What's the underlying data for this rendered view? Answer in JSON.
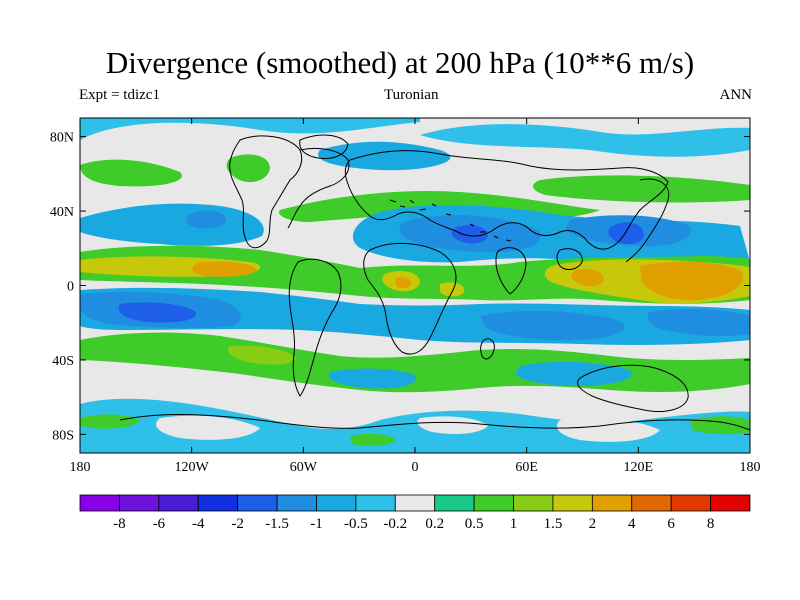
{
  "title": "Divergence (smoothed) at 200 hPa (10**6 m/s)",
  "subtitle_left": "Expt = tdizc1",
  "subtitle_center": "Turonian",
  "subtitle_right": "ANN",
  "chart_data": {
    "type": "filled-contour-map",
    "variable": "Divergence (smoothed)",
    "level": "200 hPa",
    "units": "10**6 m/s",
    "xlim": [
      -180,
      180
    ],
    "ylim": [
      -90,
      90
    ],
    "lon_ticks": [
      {
        "value": -180,
        "label": "180"
      },
      {
        "value": -120,
        "label": "120W"
      },
      {
        "value": -60,
        "label": "60W"
      },
      {
        "value": 0,
        "label": "0"
      },
      {
        "value": 60,
        "label": "60E"
      },
      {
        "value": 120,
        "label": "120E"
      },
      {
        "value": 180,
        "label": "180"
      }
    ],
    "lat_ticks": [
      {
        "value": 80,
        "label": "80N"
      },
      {
        "value": 40,
        "label": "40N"
      },
      {
        "value": 0,
        "label": "0"
      },
      {
        "value": -40,
        "label": "40S"
      },
      {
        "value": -80,
        "label": "80S"
      }
    ],
    "colorbar": {
      "labels": [
        "-8",
        "-6",
        "-4",
        "-2",
        "-1.5",
        "-1",
        "-0.5",
        "-0.2",
        "0.2",
        "0.5",
        "1",
        "1.5",
        "2",
        "4",
        "6",
        "8"
      ],
      "colors": [
        "#8a00e6",
        "#6e12dd",
        "#4b1bd6",
        "#1230e0",
        "#1e5ee8",
        "#1f8ee0",
        "#19a9e0",
        "#2ec0e8",
        "#e8e8e8",
        "#19c98a",
        "#3fcc2a",
        "#88cc14",
        "#c8c80a",
        "#e0a000",
        "#e06a00",
        "#e03a00",
        "#e00000"
      ]
    }
  }
}
